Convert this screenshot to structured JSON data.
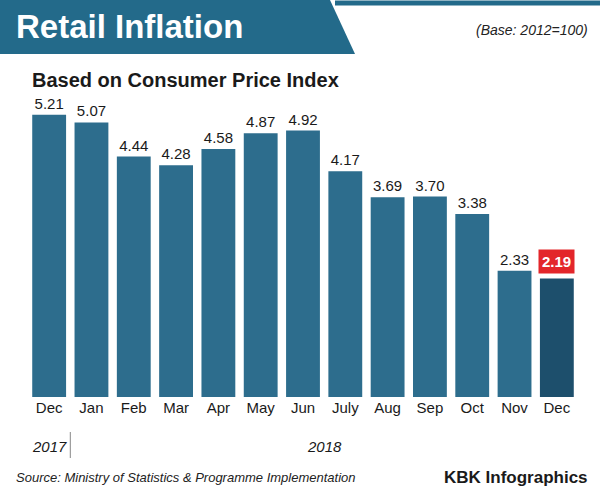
{
  "chart_data": {
    "type": "bar",
    "title": "Retail Inflation",
    "subtitle": "Based on Consumer Price Index",
    "note": "(Base: 2012=100)",
    "source": "Source: Ministry of Statistics & Programme Implementation",
    "credit": "KBK Infographics",
    "categories": [
      "Dec",
      "Jan",
      "Feb",
      "Mar",
      "Apr",
      "May",
      "Jun",
      "July",
      "Aug",
      "Sep",
      "Oct",
      "Nov",
      "Dec"
    ],
    "category_years": [
      "2017",
      "2018",
      "2018",
      "2018",
      "2018",
      "2018",
      "2018",
      "2018",
      "2018",
      "2018",
      "2018",
      "2018",
      "2018"
    ],
    "values": [
      5.21,
      5.07,
      4.44,
      4.28,
      4.58,
      4.87,
      4.92,
      4.17,
      3.69,
      3.7,
      3.38,
      2.33,
      2.19
    ],
    "value_labels": [
      "5.21",
      "5.07",
      "4.44",
      "4.28",
      "4.58",
      "4.87",
      "4.92",
      "4.17",
      "3.69",
      "3.70",
      "3.38",
      "2.33",
      "2.19"
    ],
    "colors": [
      "#2d6d8d",
      "#2d6d8d",
      "#2d6d8d",
      "#2d6d8d",
      "#2d6d8d",
      "#2d6d8d",
      "#2d6d8d",
      "#2d6d8d",
      "#2d6d8d",
      "#2d6d8d",
      "#2d6d8d",
      "#2d6d8d",
      "#1d4f6c"
    ],
    "data_labels": true,
    "tick_labels": "x",
    "grid": false
  }
}
